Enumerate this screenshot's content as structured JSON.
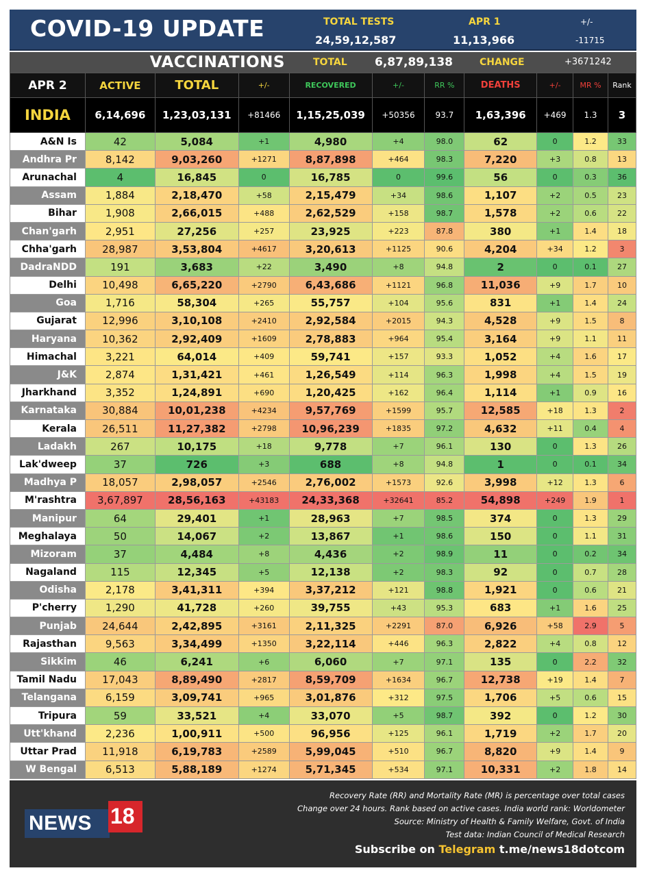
{
  "header": {
    "title": "COVID-19 UPDATE",
    "total_tests_label": "TOTAL TESTS",
    "total_tests_value": "24,59,12,587",
    "day_label": "APR 1",
    "day_value": "11,13,966",
    "change_label": "+/-",
    "change_value": "-11715"
  },
  "vaccinations": {
    "title": "VACCINATIONS",
    "total_label": "TOTAL",
    "total_value": "6,87,89,138",
    "change_label": "CHANGE",
    "change_value": "+3671242"
  },
  "columns": {
    "date": "APR 2",
    "active": "ACTIVE",
    "total": "TOTAL",
    "total_change": "+/-",
    "recovered": "RECOVERED",
    "recovered_change": "+/-",
    "rr": "RR %",
    "deaths": "DEATHS",
    "deaths_change": "+/-",
    "mr": "MR %",
    "rank": "Rank"
  },
  "india": {
    "name": "INDIA",
    "active": "6,14,696",
    "total": "1,23,03,131",
    "total_change": "+81466",
    "recovered": "1,15,25,039",
    "recovered_change": "+50356",
    "rr": "93.7",
    "deaths": "1,63,396",
    "deaths_change": "+469",
    "mr": "1.3",
    "rank": "3"
  },
  "colors": {
    "header_bg": "#27436c",
    "accent_yellow": "#f5d53e",
    "recovered_green": "#3fc85b",
    "deaths_red": "#f0403a",
    "scale_green": "#5cbe6e",
    "scale_yellow": "#fde987",
    "scale_orange": "#f9c47a",
    "scale_red": "#f0726a"
  },
  "rows": [
    {
      "name": "A&N Is",
      "active": "42",
      "total": "5,084",
      "total_change": "+1",
      "recovered": "4,980",
      "recovered_change": "+4",
      "rr": "98.0",
      "deaths": "62",
      "deaths_change": "0",
      "mr": "1.2",
      "rank": "33"
    },
    {
      "name": "Andhra Pr",
      "active": "8,142",
      "total": "9,03,260",
      "total_change": "+1271",
      "recovered": "8,87,898",
      "recovered_change": "+464",
      "rr": "98.3",
      "deaths": "7,220",
      "deaths_change": "+3",
      "mr": "0.8",
      "rank": "13"
    },
    {
      "name": "Arunachal",
      "active": "4",
      "total": "16,845",
      "total_change": "0",
      "recovered": "16,785",
      "recovered_change": "0",
      "rr": "99.6",
      "deaths": "56",
      "deaths_change": "0",
      "mr": "0.3",
      "rank": "36"
    },
    {
      "name": "Assam",
      "active": "1,884",
      "total": "2,18,470",
      "total_change": "+58",
      "recovered": "2,15,479",
      "recovered_change": "+34",
      "rr": "98.6",
      "deaths": "1,107",
      "deaths_change": "+2",
      "mr": "0.5",
      "rank": "23"
    },
    {
      "name": "Bihar",
      "active": "1,908",
      "total": "2,66,015",
      "total_change": "+488",
      "recovered": "2,62,529",
      "recovered_change": "+158",
      "rr": "98.7",
      "deaths": "1,578",
      "deaths_change": "+2",
      "mr": "0.6",
      "rank": "22"
    },
    {
      "name": "Chan'garh",
      "active": "2,951",
      "total": "27,256",
      "total_change": "+257",
      "recovered": "23,925",
      "recovered_change": "+223",
      "rr": "87.8",
      "deaths": "380",
      "deaths_change": "+1",
      "mr": "1.4",
      "rank": "18"
    },
    {
      "name": "Chha'garh",
      "active": "28,987",
      "total": "3,53,804",
      "total_change": "+4617",
      "recovered": "3,20,613",
      "recovered_change": "+1125",
      "rr": "90.6",
      "deaths": "4,204",
      "deaths_change": "+34",
      "mr": "1.2",
      "rank": "3"
    },
    {
      "name": "DadraNDD",
      "active": "191",
      "total": "3,683",
      "total_change": "+22",
      "recovered": "3,490",
      "recovered_change": "+8",
      "rr": "94.8",
      "deaths": "2",
      "deaths_change": "0",
      "mr": "0.1",
      "rank": "27"
    },
    {
      "name": "Delhi",
      "active": "10,498",
      "total": "6,65,220",
      "total_change": "+2790",
      "recovered": "6,43,686",
      "recovered_change": "+1121",
      "rr": "96.8",
      "deaths": "11,036",
      "deaths_change": "+9",
      "mr": "1.7",
      "rank": "10"
    },
    {
      "name": "Goa",
      "active": "1,716",
      "total": "58,304",
      "total_change": "+265",
      "recovered": "55,757",
      "recovered_change": "+104",
      "rr": "95.6",
      "deaths": "831",
      "deaths_change": "+1",
      "mr": "1.4",
      "rank": "24"
    },
    {
      "name": "Gujarat",
      "active": "12,996",
      "total": "3,10,108",
      "total_change": "+2410",
      "recovered": "2,92,584",
      "recovered_change": "+2015",
      "rr": "94.3",
      "deaths": "4,528",
      "deaths_change": "+9",
      "mr": "1.5",
      "rank": "8"
    },
    {
      "name": "Haryana",
      "active": "10,362",
      "total": "2,92,409",
      "total_change": "+1609",
      "recovered": "2,78,883",
      "recovered_change": "+964",
      "rr": "95.4",
      "deaths": "3,164",
      "deaths_change": "+9",
      "mr": "1.1",
      "rank": "11"
    },
    {
      "name": "Himachal",
      "active": "3,221",
      "total": "64,014",
      "total_change": "+409",
      "recovered": "59,741",
      "recovered_change": "+157",
      "rr": "93.3",
      "deaths": "1,052",
      "deaths_change": "+4",
      "mr": "1.6",
      "rank": "17"
    },
    {
      "name": "J&K",
      "active": "2,874",
      "total": "1,31,421",
      "total_change": "+461",
      "recovered": "1,26,549",
      "recovered_change": "+114",
      "rr": "96.3",
      "deaths": "1,998",
      "deaths_change": "+4",
      "mr": "1.5",
      "rank": "19"
    },
    {
      "name": "Jharkhand",
      "active": "3,352",
      "total": "1,24,891",
      "total_change": "+690",
      "recovered": "1,20,425",
      "recovered_change": "+162",
      "rr": "96.4",
      "deaths": "1,114",
      "deaths_change": "+1",
      "mr": "0.9",
      "rank": "16"
    },
    {
      "name": "Karnataka",
      "active": "30,884",
      "total": "10,01,238",
      "total_change": "+4234",
      "recovered": "9,57,769",
      "recovered_change": "+1599",
      "rr": "95.7",
      "deaths": "12,585",
      "deaths_change": "+18",
      "mr": "1.3",
      "rank": "2"
    },
    {
      "name": "Kerala",
      "active": "26,511",
      "total": "11,27,382",
      "total_change": "+2798",
      "recovered": "10,96,239",
      "recovered_change": "+1835",
      "rr": "97.2",
      "deaths": "4,632",
      "deaths_change": "+11",
      "mr": "0.4",
      "rank": "4"
    },
    {
      "name": "Ladakh",
      "active": "267",
      "total": "10,175",
      "total_change": "+18",
      "recovered": "9,778",
      "recovered_change": "+7",
      "rr": "96.1",
      "deaths": "130",
      "deaths_change": "0",
      "mr": "1.3",
      "rank": "26"
    },
    {
      "name": "Lak'dweep",
      "active": "37",
      "total": "726",
      "total_change": "+3",
      "recovered": "688",
      "recovered_change": "+8",
      "rr": "94.8",
      "deaths": "1",
      "deaths_change": "0",
      "mr": "0.1",
      "rank": "34"
    },
    {
      "name": "Madhya P",
      "active": "18,057",
      "total": "2,98,057",
      "total_change": "+2546",
      "recovered": "2,76,002",
      "recovered_change": "+1573",
      "rr": "92.6",
      "deaths": "3,998",
      "deaths_change": "+12",
      "mr": "1.3",
      "rank": "6"
    },
    {
      "name": "M'rashtra",
      "active": "3,67,897",
      "total": "28,56,163",
      "total_change": "+43183",
      "recovered": "24,33,368",
      "recovered_change": "+32641",
      "rr": "85.2",
      "deaths": "54,898",
      "deaths_change": "+249",
      "mr": "1.9",
      "rank": "1"
    },
    {
      "name": "Manipur",
      "active": "64",
      "total": "29,401",
      "total_change": "+1",
      "recovered": "28,963",
      "recovered_change": "+7",
      "rr": "98.5",
      "deaths": "374",
      "deaths_change": "0",
      "mr": "1.3",
      "rank": "29"
    },
    {
      "name": "Meghalaya",
      "active": "50",
      "total": "14,067",
      "total_change": "+2",
      "recovered": "13,867",
      "recovered_change": "+1",
      "rr": "98.6",
      "deaths": "150",
      "deaths_change": "0",
      "mr": "1.1",
      "rank": "31"
    },
    {
      "name": "Mizoram",
      "active": "37",
      "total": "4,484",
      "total_change": "+8",
      "recovered": "4,436",
      "recovered_change": "+2",
      "rr": "98.9",
      "deaths": "11",
      "deaths_change": "0",
      "mr": "0.2",
      "rank": "34"
    },
    {
      "name": "Nagaland",
      "active": "115",
      "total": "12,345",
      "total_change": "+5",
      "recovered": "12,138",
      "recovered_change": "+2",
      "rr": "98.3",
      "deaths": "92",
      "deaths_change": "0",
      "mr": "0.7",
      "rank": "28"
    },
    {
      "name": "Odisha",
      "active": "2,178",
      "total": "3,41,311",
      "total_change": "+394",
      "recovered": "3,37,212",
      "recovered_change": "+121",
      "rr": "98.8",
      "deaths": "1,921",
      "deaths_change": "0",
      "mr": "0.6",
      "rank": "21"
    },
    {
      "name": "P'cherry",
      "active": "1,290",
      "total": "41,728",
      "total_change": "+260",
      "recovered": "39,755",
      "recovered_change": "+43",
      "rr": "95.3",
      "deaths": "683",
      "deaths_change": "+1",
      "mr": "1.6",
      "rank": "25"
    },
    {
      "name": "Punjab",
      "active": "24,644",
      "total": "2,42,895",
      "total_change": "+3161",
      "recovered": "2,11,325",
      "recovered_change": "+2291",
      "rr": "87.0",
      "deaths": "6,926",
      "deaths_change": "+58",
      "mr": "2.9",
      "rank": "5"
    },
    {
      "name": "Rajasthan",
      "active": "9,563",
      "total": "3,34,499",
      "total_change": "+1350",
      "recovered": "3,22,114",
      "recovered_change": "+446",
      "rr": "96.3",
      "deaths": "2,822",
      "deaths_change": "+4",
      "mr": "0.8",
      "rank": "12"
    },
    {
      "name": "Sikkim",
      "active": "46",
      "total": "6,241",
      "total_change": "+6",
      "recovered": "6,060",
      "recovered_change": "+7",
      "rr": "97.1",
      "deaths": "135",
      "deaths_change": "0",
      "mr": "2.2",
      "rank": "32"
    },
    {
      "name": "Tamil Nadu",
      "active": "17,043",
      "total": "8,89,490",
      "total_change": "+2817",
      "recovered": "8,59,709",
      "recovered_change": "+1634",
      "rr": "96.7",
      "deaths": "12,738",
      "deaths_change": "+19",
      "mr": "1.4",
      "rank": "7"
    },
    {
      "name": "Telangana",
      "active": "6,159",
      "total": "3,09,741",
      "total_change": "+965",
      "recovered": "3,01,876",
      "recovered_change": "+312",
      "rr": "97.5",
      "deaths": "1,706",
      "deaths_change": "+5",
      "mr": "0.6",
      "rank": "15"
    },
    {
      "name": "Tripura",
      "active": "59",
      "total": "33,521",
      "total_change": "+4",
      "recovered": "33,070",
      "recovered_change": "+5",
      "rr": "98.7",
      "deaths": "392",
      "deaths_change": "0",
      "mr": "1.2",
      "rank": "30"
    },
    {
      "name": "Utt'khand",
      "active": "2,236",
      "total": "1,00,911",
      "total_change": "+500",
      "recovered": "96,956",
      "recovered_change": "+125",
      "rr": "96.1",
      "deaths": "1,719",
      "deaths_change": "+2",
      "mr": "1.7",
      "rank": "20"
    },
    {
      "name": "Uttar Prad",
      "active": "11,918",
      "total": "6,19,783",
      "total_change": "+2589",
      "recovered": "5,99,045",
      "recovered_change": "+510",
      "rr": "96.7",
      "deaths": "8,820",
      "deaths_change": "+9",
      "mr": "1.4",
      "rank": "9"
    },
    {
      "name": "W Bengal",
      "active": "6,513",
      "total": "5,88,189",
      "total_change": "+1274",
      "recovered": "5,71,345",
      "recovered_change": "+534",
      "rr": "97.1",
      "deaths": "10,331",
      "deaths_change": "+2",
      "mr": "1.8",
      "rank": "14"
    }
  ],
  "footer": {
    "logo_news": "NEWS",
    "logo_18": "18",
    "notes": [
      "Recovery Rate (RR) and Mortality Rate (MR) is percentage over total cases",
      "Change over 24 hours. Rank based on active cases. India world rank: Worldometer",
      "Source: Ministry of Health & Family Welfare, Govt. of India",
      "Test data: Indian Council of Medical Research"
    ],
    "subscribe_prefix": "Subscribe on",
    "subscribe_channel": "Telegram",
    "subscribe_link": "t.me/news18dotcom"
  }
}
